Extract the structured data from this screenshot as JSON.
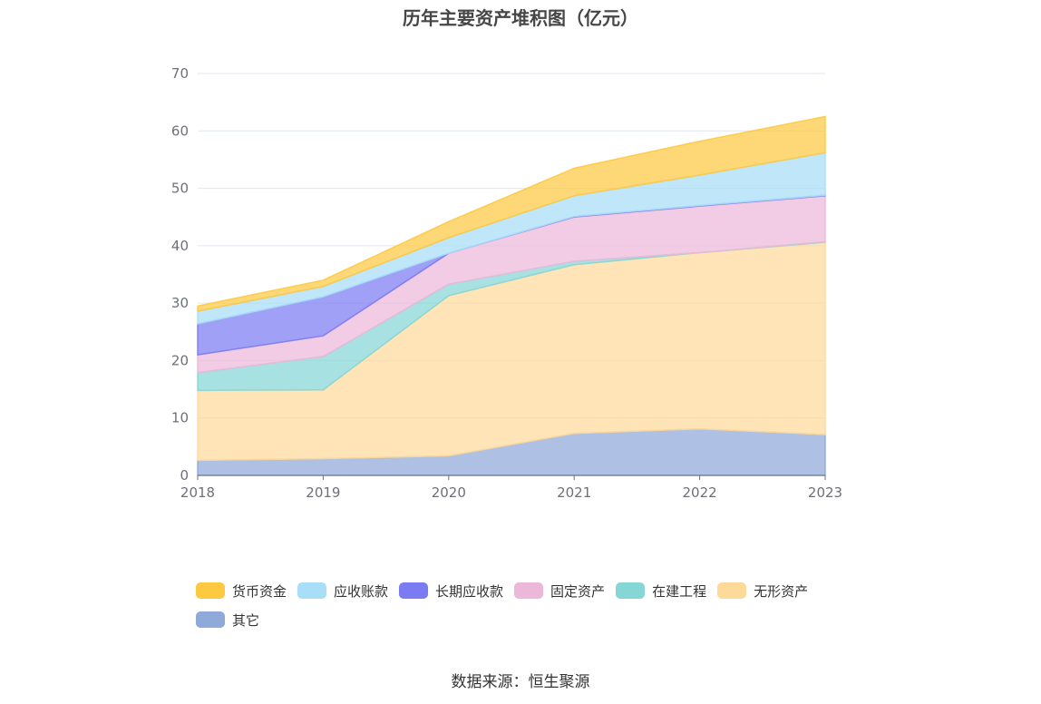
{
  "chart_data": {
    "type": "area",
    "stacked": true,
    "title": "历年主要资产堆积图（亿元）",
    "categories": [
      "2018",
      "2019",
      "2020",
      "2021",
      "2022",
      "2023"
    ],
    "ylim": [
      0,
      70
    ],
    "yticks": [
      0,
      10,
      20,
      30,
      40,
      50,
      60,
      70
    ],
    "grid": true,
    "legend_position": "bottom",
    "series": [
      {
        "name": "其它",
        "color": "#8fa9d9",
        "values": [
          2.6,
          2.9,
          3.4,
          7.3,
          8.1,
          7.1
        ]
      },
      {
        "name": "无形资产",
        "color": "#fdd99a",
        "values": [
          12.2,
          12.0,
          27.9,
          29.4,
          30.7,
          33.5
        ]
      },
      {
        "name": "在建工程",
        "color": "#86d6d6",
        "values": [
          3.1,
          5.8,
          2.0,
          0.6,
          0.0,
          0.1
        ]
      },
      {
        "name": "固定资产",
        "color": "#ebb8d9",
        "values": [
          3.1,
          3.6,
          5.4,
          7.7,
          8.1,
          8.0
        ]
      },
      {
        "name": "长期应收款",
        "color": "#7b7cf2",
        "values": [
          5.4,
          6.8,
          0.0,
          0.1,
          0.1,
          0.1
        ]
      },
      {
        "name": "应收账款",
        "color": "#a8def7",
        "values": [
          2.2,
          1.8,
          2.7,
          3.6,
          5.3,
          7.4
        ]
      },
      {
        "name": "货币资金",
        "color": "#fdc941",
        "values": [
          0.9,
          1.1,
          2.8,
          4.8,
          5.9,
          6.3
        ]
      }
    ]
  },
  "legend_order": [
    "货币资金",
    "应收账款",
    "长期应收款",
    "固定资产",
    "在建工程",
    "无形资产",
    "其它"
  ],
  "source": "数据来源：恒生聚源"
}
